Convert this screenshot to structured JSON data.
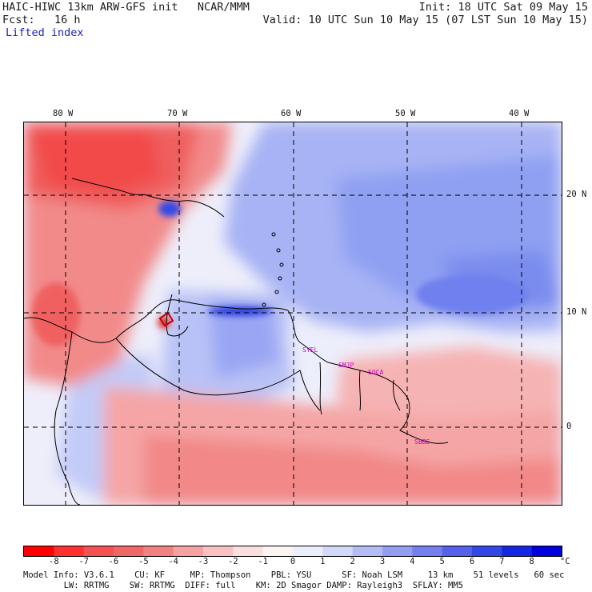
{
  "header": {
    "title_left": "HAIC-HIWC 13km ARW-GFS init   NCAR/MMM",
    "fcst": "Fcst:   16 h",
    "field": "Lifted index",
    "init": "Init: 18 UTC Sat 09 May 15",
    "valid": "Valid: 10 UTC Sun 10 May 15 (07 LST Sun 10 May 15)"
  },
  "map": {
    "lon_labels": [
      "80 W",
      "70 W",
      "60 W",
      "50 W",
      "40 W"
    ],
    "lat_labels": [
      "20 N",
      "10 N",
      "0"
    ],
    "stations": [
      "SYEL",
      "SMJP",
      "SOCA",
      "SBBE"
    ],
    "colors": {
      "border": "#000000",
      "grid": "#000000",
      "station": "#cc00cc"
    }
  },
  "colorbar": {
    "labels": [
      "-8",
      "-7",
      "-6",
      "-5",
      "-4",
      "-3",
      "-2",
      "-1",
      "0",
      "1",
      "2",
      "3",
      "4",
      "5",
      "6",
      "7",
      "8"
    ],
    "unit": "°C",
    "colors": [
      "#ff0000",
      "#ff3030",
      "#f45252",
      "#f06767",
      "#f28282",
      "#f6a2a2",
      "#f9c2c2",
      "#fbdede",
      "#fcf3f3",
      "#eceefc",
      "#d2d8fa",
      "#b4bcf6",
      "#939ef2",
      "#7480ee",
      "#5462ea",
      "#3448e6",
      "#1428e2",
      "#0000dc"
    ]
  },
  "model_info": {
    "line1": "Model Info: V3.6.1    CU: KF     MP: Thompson    PBL: YSU      SF: Noah LSM     13 km    51 levels   60 sec",
    "line2": "        LW: RRTMG    SW: RRTMG  DIFF: full    KM: 2D Smagor DAMP: Rayleigh3  SFLAY: MM5"
  }
}
